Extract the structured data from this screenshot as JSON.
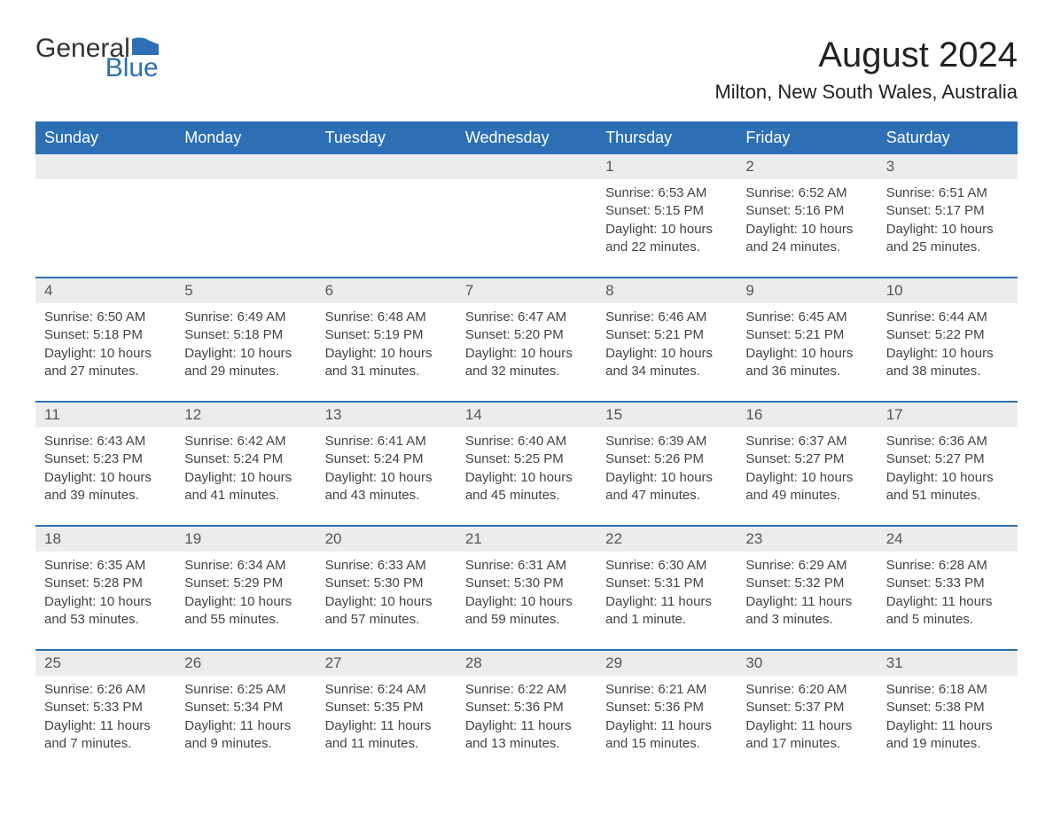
{
  "logo": {
    "text1": "General",
    "text2": "Blue",
    "icon_color": "#2c6fb5"
  },
  "title": "August 2024",
  "location": "Milton, New South Wales, Australia",
  "colors": {
    "header_bg": "#2c6fb5",
    "header_text": "#ffffff",
    "daynum_bg": "#ececec",
    "body_text": "#444444",
    "separator": "#2c6fb5"
  },
  "day_labels": [
    "Sunday",
    "Monday",
    "Tuesday",
    "Wednesday",
    "Thursday",
    "Friday",
    "Saturday"
  ],
  "weeks": [
    [
      null,
      null,
      null,
      null,
      {
        "n": "1",
        "sunrise": "6:53 AM",
        "sunset": "5:15 PM",
        "daylight": "10 hours and 22 minutes."
      },
      {
        "n": "2",
        "sunrise": "6:52 AM",
        "sunset": "5:16 PM",
        "daylight": "10 hours and 24 minutes."
      },
      {
        "n": "3",
        "sunrise": "6:51 AM",
        "sunset": "5:17 PM",
        "daylight": "10 hours and 25 minutes."
      }
    ],
    [
      {
        "n": "4",
        "sunrise": "6:50 AM",
        "sunset": "5:18 PM",
        "daylight": "10 hours and 27 minutes."
      },
      {
        "n": "5",
        "sunrise": "6:49 AM",
        "sunset": "5:18 PM",
        "daylight": "10 hours and 29 minutes."
      },
      {
        "n": "6",
        "sunrise": "6:48 AM",
        "sunset": "5:19 PM",
        "daylight": "10 hours and 31 minutes."
      },
      {
        "n": "7",
        "sunrise": "6:47 AM",
        "sunset": "5:20 PM",
        "daylight": "10 hours and 32 minutes."
      },
      {
        "n": "8",
        "sunrise": "6:46 AM",
        "sunset": "5:21 PM",
        "daylight": "10 hours and 34 minutes."
      },
      {
        "n": "9",
        "sunrise": "6:45 AM",
        "sunset": "5:21 PM",
        "daylight": "10 hours and 36 minutes."
      },
      {
        "n": "10",
        "sunrise": "6:44 AM",
        "sunset": "5:22 PM",
        "daylight": "10 hours and 38 minutes."
      }
    ],
    [
      {
        "n": "11",
        "sunrise": "6:43 AM",
        "sunset": "5:23 PM",
        "daylight": "10 hours and 39 minutes."
      },
      {
        "n": "12",
        "sunrise": "6:42 AM",
        "sunset": "5:24 PM",
        "daylight": "10 hours and 41 minutes."
      },
      {
        "n": "13",
        "sunrise": "6:41 AM",
        "sunset": "5:24 PM",
        "daylight": "10 hours and 43 minutes."
      },
      {
        "n": "14",
        "sunrise": "6:40 AM",
        "sunset": "5:25 PM",
        "daylight": "10 hours and 45 minutes."
      },
      {
        "n": "15",
        "sunrise": "6:39 AM",
        "sunset": "5:26 PM",
        "daylight": "10 hours and 47 minutes."
      },
      {
        "n": "16",
        "sunrise": "6:37 AM",
        "sunset": "5:27 PM",
        "daylight": "10 hours and 49 minutes."
      },
      {
        "n": "17",
        "sunrise": "6:36 AM",
        "sunset": "5:27 PM",
        "daylight": "10 hours and 51 minutes."
      }
    ],
    [
      {
        "n": "18",
        "sunrise": "6:35 AM",
        "sunset": "5:28 PM",
        "daylight": "10 hours and 53 minutes."
      },
      {
        "n": "19",
        "sunrise": "6:34 AM",
        "sunset": "5:29 PM",
        "daylight": "10 hours and 55 minutes."
      },
      {
        "n": "20",
        "sunrise": "6:33 AM",
        "sunset": "5:30 PM",
        "daylight": "10 hours and 57 minutes."
      },
      {
        "n": "21",
        "sunrise": "6:31 AM",
        "sunset": "5:30 PM",
        "daylight": "10 hours and 59 minutes."
      },
      {
        "n": "22",
        "sunrise": "6:30 AM",
        "sunset": "5:31 PM",
        "daylight": "11 hours and 1 minute."
      },
      {
        "n": "23",
        "sunrise": "6:29 AM",
        "sunset": "5:32 PM",
        "daylight": "11 hours and 3 minutes."
      },
      {
        "n": "24",
        "sunrise": "6:28 AM",
        "sunset": "5:33 PM",
        "daylight": "11 hours and 5 minutes."
      }
    ],
    [
      {
        "n": "25",
        "sunrise": "6:26 AM",
        "sunset": "5:33 PM",
        "daylight": "11 hours and 7 minutes."
      },
      {
        "n": "26",
        "sunrise": "6:25 AM",
        "sunset": "5:34 PM",
        "daylight": "11 hours and 9 minutes."
      },
      {
        "n": "27",
        "sunrise": "6:24 AM",
        "sunset": "5:35 PM",
        "daylight": "11 hours and 11 minutes."
      },
      {
        "n": "28",
        "sunrise": "6:22 AM",
        "sunset": "5:36 PM",
        "daylight": "11 hours and 13 minutes."
      },
      {
        "n": "29",
        "sunrise": "6:21 AM",
        "sunset": "5:36 PM",
        "daylight": "11 hours and 15 minutes."
      },
      {
        "n": "30",
        "sunrise": "6:20 AM",
        "sunset": "5:37 PM",
        "daylight": "11 hours and 17 minutes."
      },
      {
        "n": "31",
        "sunrise": "6:18 AM",
        "sunset": "5:38 PM",
        "daylight": "11 hours and 19 minutes."
      }
    ]
  ],
  "labels": {
    "sunrise": "Sunrise:",
    "sunset": "Sunset:",
    "daylight": "Daylight:"
  }
}
